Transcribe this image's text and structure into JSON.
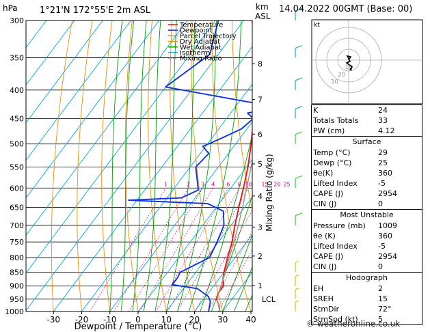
{
  "header": {
    "hpa_label": "hPa",
    "location": "1°21'N  172°55'E  2m  ASL",
    "km_label": "km",
    "asl_label": "ASL",
    "date": "14.04.2022  00GMT  (Base: 00)"
  },
  "legend": [
    {
      "label": "Temperature",
      "color": "#ee1111"
    },
    {
      "label": "Dewpoint",
      "color": "#1133dd"
    },
    {
      "label": "Parcel Trajectory",
      "color": "#999999"
    },
    {
      "label": "Dry Adiabat",
      "color": "#f08c00"
    },
    {
      "label": "Wet Adiabat",
      "color": "#00a000"
    },
    {
      "label": "Isotherm",
      "color": "#00a6e0"
    },
    {
      "label": "Mixing Ratio",
      "color": "#dd0088"
    }
  ],
  "chart_data": {
    "type": "line",
    "title": "",
    "xlabel": "Dewpoint / Temperature (°C)",
    "ylabel_right": "Mixing Ratio (g/kg)",
    "pressure_levels": [
      300,
      350,
      400,
      450,
      500,
      550,
      600,
      650,
      700,
      750,
      800,
      850,
      900,
      950,
      1000
    ],
    "x_ticks": [
      -30,
      -20,
      -10,
      0,
      10,
      20,
      30,
      40
    ],
    "xlim": [
      -40,
      40
    ],
    "ylim": [
      1000,
      300
    ],
    "km_ticks": [
      {
        "km": "8",
        "p": 359
      },
      {
        "km": "7",
        "p": 416
      },
      {
        "km": "6",
        "p": 480
      },
      {
        "km": "5",
        "p": 543
      },
      {
        "km": "4",
        "p": 620
      },
      {
        "km": "3",
        "p": 705
      },
      {
        "km": "2",
        "p": 795
      },
      {
        "km": "1",
        "p": 898
      }
    ],
    "lcl": {
      "label": "LCL",
      "p": 950
    },
    "mixing_ratio_labels": [
      "1",
      "2",
      "3",
      "4",
      "6",
      "8",
      "10",
      "15",
      "20",
      "25"
    ],
    "mixing_ratio_values": [
      1,
      2,
      3,
      4,
      6,
      8,
      10,
      15,
      20,
      25
    ],
    "series": [
      {
        "name": "Temperature",
        "color": "#ee1111",
        "points": [
          [
            1000,
            29
          ],
          [
            975,
            27
          ],
          [
            950,
            24.5
          ],
          [
            925,
            23.5
          ],
          [
            900,
            23.5
          ],
          [
            875,
            21.5
          ],
          [
            850,
            20
          ],
          [
            800,
            17.4
          ],
          [
            750,
            14.8
          ],
          [
            700,
            11.4
          ],
          [
            650,
            8
          ],
          [
            600,
            4.5
          ],
          [
            550,
            0.5
          ],
          [
            500,
            -4.5
          ],
          [
            480,
            -6.8
          ],
          [
            450,
            -10.5
          ],
          [
            420,
            -14.5
          ],
          [
            400,
            -17.5
          ],
          [
            350,
            -26
          ],
          [
            300,
            -37
          ]
        ]
      },
      {
        "name": "Dewpoint",
        "color": "#1133dd",
        "points": [
          [
            1000,
            25
          ],
          [
            960,
            23
          ],
          [
            940,
            21
          ],
          [
            910,
            15
          ],
          [
            895,
            5
          ],
          [
            870,
            5
          ],
          [
            850,
            4.5
          ],
          [
            800,
            11
          ],
          [
            750,
            9.5
          ],
          [
            700,
            7.5
          ],
          [
            660,
            3.5
          ],
          [
            640,
            -4
          ],
          [
            631,
            -33
          ],
          [
            625,
            -15
          ],
          [
            605,
            -11
          ],
          [
            550,
            -18
          ],
          [
            520,
            -17
          ],
          [
            505,
            -21
          ],
          [
            490,
            -17
          ],
          [
            470,
            -12
          ],
          [
            450,
            -10.5
          ],
          [
            440,
            -14
          ],
          [
            428,
            -4
          ],
          [
            420,
            -17
          ],
          [
            395,
            -50
          ],
          [
            345,
            -43
          ],
          [
            300,
            -49
          ]
        ]
      },
      {
        "name": "Parcel Trajectory",
        "color": "#999999",
        "points": [
          [
            1000,
            29
          ],
          [
            950,
            24.7
          ],
          [
            900,
            22.6
          ],
          [
            850,
            20.4
          ],
          [
            800,
            18
          ],
          [
            750,
            15.5
          ],
          [
            700,
            12.6
          ],
          [
            650,
            9.3
          ],
          [
            600,
            5.6
          ],
          [
            550,
            1.6
          ],
          [
            500,
            -2.8
          ],
          [
            450,
            -7.9
          ],
          [
            400,
            -13.8
          ],
          [
            350,
            -21
          ],
          [
            300,
            -30
          ]
        ]
      }
    ],
    "hodograph": {
      "label": "kt",
      "ring_labels": [
        "10",
        "20",
        "30"
      ]
    },
    "wind_barbs": [
      {
        "p": 1000,
        "speed_kt": 5
      },
      {
        "p": 950,
        "speed_kt": 5
      },
      {
        "p": 900,
        "speed_kt": 5
      },
      {
        "p": 850,
        "speed_kt": 5
      },
      {
        "p": 700,
        "speed_kt": 10
      },
      {
        "p": 600,
        "speed_kt": 10
      },
      {
        "p": 500,
        "speed_kt": 10
      },
      {
        "p": 450,
        "speed_kt": 10
      },
      {
        "p": 400,
        "speed_kt": 10
      },
      {
        "p": 350,
        "speed_kt": 10
      },
      {
        "p": 300,
        "speed_kt": 10
      }
    ]
  },
  "indices": {
    "top": [
      {
        "label": "K",
        "value": "24"
      },
      {
        "label": "Totals Totals",
        "value": "33"
      },
      {
        "label": "PW (cm)",
        "value": "4.12"
      }
    ],
    "surface": {
      "title": "Surface",
      "rows": [
        {
          "label": "Temp (°C)",
          "value": "29"
        },
        {
          "label": "Dewp (°C)",
          "value": "25"
        },
        {
          "label": "θe(K)",
          "value": "360"
        },
        {
          "label": "Lifted Index",
          "value": "-5"
        },
        {
          "label": "CAPE (J)",
          "value": "2954"
        },
        {
          "label": "CIN (J)",
          "value": "0"
        }
      ]
    },
    "most_unstable": {
      "title": "Most Unstable",
      "rows": [
        {
          "label": "Pressure (mb)",
          "value": "1009"
        },
        {
          "label": "θe (K)",
          "value": "360"
        },
        {
          "label": "Lifted Index",
          "value": "-5"
        },
        {
          "label": "CAPE (J)",
          "value": "2954"
        },
        {
          "label": "CIN (J)",
          "value": "0"
        }
      ]
    },
    "hodograph": {
      "title": "Hodograph",
      "rows": [
        {
          "label": "EH",
          "value": "2"
        },
        {
          "label": "SREH",
          "value": "15"
        },
        {
          "label": "StmDir",
          "value": "72°"
        },
        {
          "label": "StmSpd (kt)",
          "value": "5"
        }
      ]
    }
  },
  "footer": {
    "copyright": "© weatheronline.co.uk"
  }
}
